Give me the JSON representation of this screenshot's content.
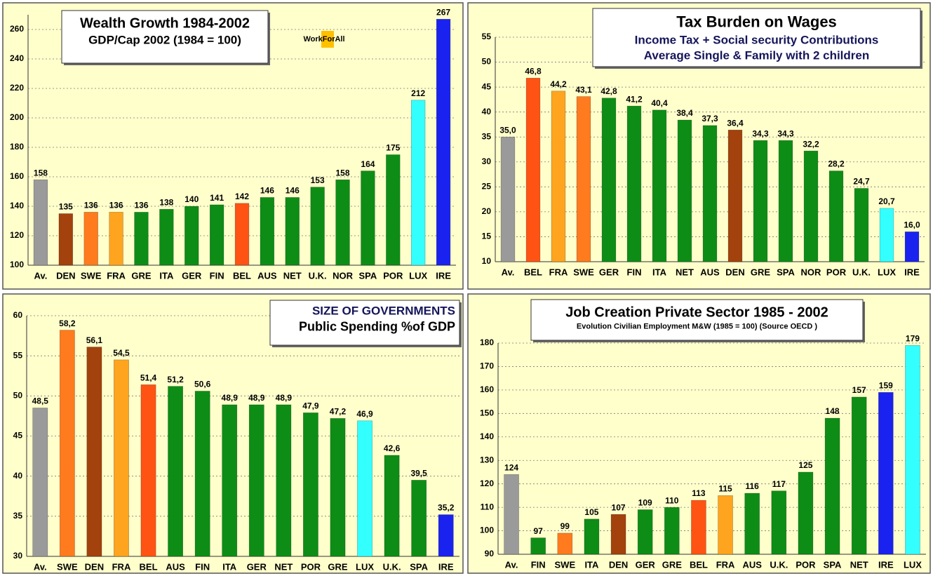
{
  "chart_data": [
    {
      "type": "bar",
      "title": "Wealth Growth 1984-2002",
      "subtitle": "GDP/Cap 2002 (1984 = 100)",
      "logo": "WorkForAll",
      "categories": [
        "Av.",
        "DEN",
        "SWE",
        "FRA",
        "GRE",
        "ITA",
        "GER",
        "FIN",
        "BEL",
        "AUS",
        "NET",
        "U.K.",
        "NOR",
        "SPA",
        "POR",
        "LUX",
        "IRE"
      ],
      "values": [
        158,
        135,
        136,
        136,
        136,
        138,
        140,
        141,
        142,
        146,
        146,
        153,
        158,
        164,
        175,
        212,
        267
      ],
      "colors": [
        "#9a9a9a",
        "#a3420c",
        "#ff7b1e",
        "#ffa41e",
        "#0d8d16",
        "#0d8d16",
        "#0d8d16",
        "#0d8d16",
        "#ff5314",
        "#0d8d16",
        "#0d8d16",
        "#0d8d16",
        "#0d8d16",
        "#0d8d16",
        "#0d8d16",
        "#33ffff",
        "#1a22f0"
      ],
      "ylim": [
        100,
        270
      ],
      "yticks": [
        100,
        120,
        140,
        160,
        180,
        200,
        220,
        240,
        260
      ],
      "grid": true
    },
    {
      "type": "bar",
      "title": "Tax Burden on Wages",
      "subtitle": [
        "Income Tax + Social security Contributions",
        "Average Single & Family with 2 children"
      ],
      "categories": [
        "Av.",
        "BEL",
        "FRA",
        "SWE",
        "GER",
        "FIN",
        "ITA",
        "NET",
        "AUS",
        "DEN",
        "GRE",
        "SPA",
        "NOR",
        "POR",
        "U.K.",
        "LUX",
        "IRE"
      ],
      "values": [
        35.0,
        46.8,
        44.2,
        43.1,
        42.8,
        41.2,
        40.4,
        38.4,
        37.3,
        36.4,
        34.3,
        34.3,
        32.2,
        28.2,
        24.7,
        20.7,
        16.0
      ],
      "value_labels": [
        "35,0",
        "46,8",
        "44,2",
        "43,1",
        "42,8",
        "41,2",
        "40,4",
        "38,4",
        "37,3",
        "36,4",
        "34,3",
        "34,3",
        "32,2",
        "28,2",
        "24,7",
        "20,7",
        "16,0"
      ],
      "colors": [
        "#9a9a9a",
        "#ff5314",
        "#ffa41e",
        "#ff7b1e",
        "#0d8d16",
        "#0d8d16",
        "#0d8d16",
        "#0d8d16",
        "#0d8d16",
        "#a3420c",
        "#0d8d16",
        "#0d8d16",
        "#0d8d16",
        "#0d8d16",
        "#0d8d16",
        "#33ffff",
        "#1a22f0"
      ],
      "ylim": [
        10,
        55
      ],
      "yticks": [
        10,
        15,
        20,
        25,
        30,
        35,
        40,
        45,
        50,
        55
      ],
      "grid": true
    },
    {
      "type": "bar",
      "title": "SIZE OF GOVERNMENTS",
      "subtitle": "Public Spending %of GDP",
      "categories": [
        "Av.",
        "SWE",
        "DEN",
        "FRA",
        "BEL",
        "AUS",
        "FIN",
        "ITA",
        "GER",
        "NET",
        "POR",
        "GRE",
        "LUX",
        "U.K.",
        "SPA",
        "IRE"
      ],
      "values": [
        48.5,
        58.2,
        56.1,
        54.5,
        51.4,
        51.2,
        50.6,
        48.9,
        48.9,
        48.9,
        47.9,
        47.2,
        46.9,
        42.6,
        39.5,
        35.2
      ],
      "value_labels": [
        "48,5",
        "58,2",
        "56,1",
        "54,5",
        "51,4",
        "51,2",
        "50,6",
        "48,9",
        "48,9",
        "48,9",
        "47,9",
        "47,2",
        "46,9",
        "42,6",
        "39,5",
        "35,2"
      ],
      "colors": [
        "#9a9a9a",
        "#ff7b1e",
        "#a3420c",
        "#ffa41e",
        "#ff5314",
        "#0d8d16",
        "#0d8d16",
        "#0d8d16",
        "#0d8d16",
        "#0d8d16",
        "#0d8d16",
        "#0d8d16",
        "#33ffff",
        "#0d8d16",
        "#0d8d16",
        "#1a22f0"
      ],
      "ylim": [
        30,
        60
      ],
      "yticks": [
        30,
        35,
        40,
        45,
        50,
        55,
        60
      ],
      "grid": true
    },
    {
      "type": "bar",
      "title": "Job Creation Private Sector 1985 - 2002",
      "subtitle": "Evolution Civilian Employment M&W  (1985 = 100) (Source OECD )",
      "categories": [
        "Av.",
        "FIN",
        "SWE",
        "ITA",
        "DEN",
        "GER",
        "GRE",
        "BEL",
        "FRA",
        "AUS",
        "U.K.",
        "POR",
        "SPA",
        "NET",
        "IRE",
        "LUX"
      ],
      "values": [
        124,
        97,
        99,
        105,
        107,
        109,
        110,
        113,
        115,
        116,
        117,
        125,
        148,
        157,
        159,
        179
      ],
      "colors": [
        "#9a9a9a",
        "#0d8d16",
        "#ff7b1e",
        "#0d8d16",
        "#a3420c",
        "#0d8d16",
        "#0d8d16",
        "#ff5314",
        "#ffa41e",
        "#0d8d16",
        "#0d8d16",
        "#0d8d16",
        "#0d8d16",
        "#0d8d16",
        "#1a22f0",
        "#33ffff"
      ],
      "ylim": [
        90,
        180
      ],
      "yticks": [
        90,
        100,
        110,
        120,
        130,
        140,
        150,
        160,
        170,
        180
      ],
      "grid": true
    }
  ]
}
